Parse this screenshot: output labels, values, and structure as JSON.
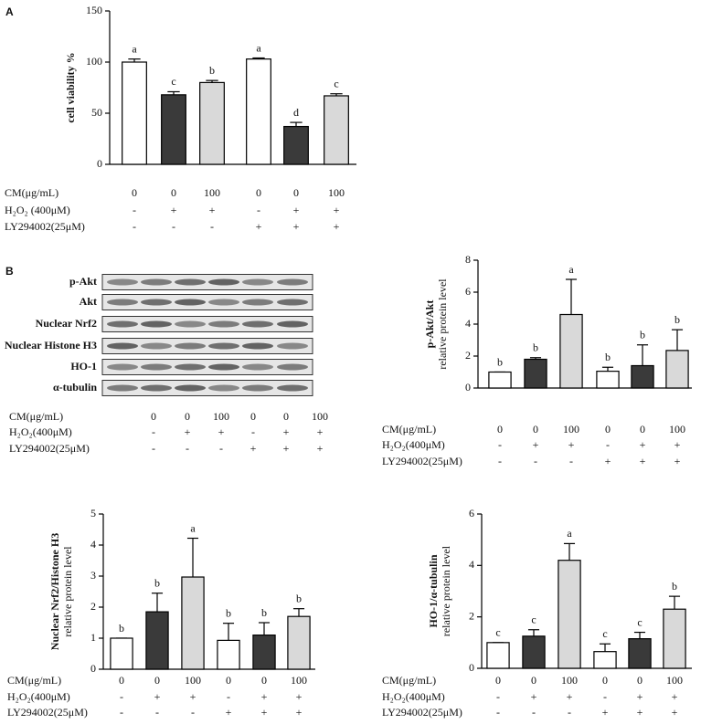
{
  "panel_labels": [
    "A",
    "B"
  ],
  "blot": {
    "bands": [
      "p-Akt",
      "Akt",
      "Nuclear Nrf2",
      "Nuclear Histone H3",
      "HO-1",
      "α-tubulin"
    ],
    "treatments": [
      {
        "label": "CM(μg/mL)",
        "values": [
          "0",
          "0",
          "100",
          "0",
          "0",
          "100"
        ]
      },
      {
        "label": "H₂O₂(400μM)",
        "values": [
          "-",
          "+",
          "+",
          "-",
          "+",
          "+"
        ]
      },
      {
        "label": "LY294002(25μM)",
        "values": [
          "-",
          "-",
          "-",
          "+",
          "+",
          "+"
        ]
      }
    ]
  },
  "chart_data": [
    {
      "type": "bar",
      "ylabel": [
        "cell viability %"
      ],
      "ylim": [
        0,
        150
      ],
      "yticks": [
        0,
        50,
        100,
        150
      ],
      "colors": [
        "#ffffff",
        "#3a3a3a",
        "#d9d9d9",
        "#ffffff",
        "#3a3a3a",
        "#d9d9d9"
      ],
      "values": [
        100,
        68,
        80,
        103,
        37,
        67
      ],
      "errors": [
        3,
        3,
        2,
        1,
        4,
        2
      ],
      "annotations": [
        "a",
        "c",
        "b",
        "a",
        "d",
        "c"
      ],
      "treatments": [
        {
          "label": "CM(μg/mL)",
          "values": [
            "0",
            "0",
            "100",
            "0",
            "0",
            "100"
          ]
        },
        {
          "label": "H₂O₂ (400μM)",
          "values": [
            "-",
            "+",
            "+",
            "-",
            "+",
            "+"
          ]
        },
        {
          "label": "LY294002(25μM)",
          "values": [
            "-",
            "-",
            "-",
            "+",
            "+",
            "+"
          ]
        }
      ]
    },
    {
      "type": "bar",
      "ylabel": [
        "p-Akt/Akt",
        "relative protein level"
      ],
      "ylim": [
        0,
        8
      ],
      "yticks": [
        0,
        2,
        4,
        6,
        8
      ],
      "colors": [
        "#ffffff",
        "#3a3a3a",
        "#d9d9d9",
        "#ffffff",
        "#3a3a3a",
        "#d9d9d9"
      ],
      "values": [
        1,
        1.8,
        4.6,
        1.05,
        1.4,
        2.35
      ],
      "errors": [
        0,
        0.1,
        2.2,
        0.25,
        1.3,
        1.3
      ],
      "annotations": [
        "b",
        "b",
        "a",
        "b",
        "b",
        "b"
      ],
      "treatments": [
        {
          "label": "CM(μg/mL)",
          "values": [
            "0",
            "0",
            "100",
            "0",
            "0",
            "100"
          ]
        },
        {
          "label": "H₂O₂(400μM)",
          "values": [
            "-",
            "+",
            "+",
            "-",
            "+",
            "+"
          ]
        },
        {
          "label": "LY294002(25μM)",
          "values": [
            "-",
            "-",
            "-",
            "+",
            "+",
            "+"
          ]
        }
      ]
    },
    {
      "type": "bar",
      "ylabel": [
        "Nuclear Nrf2/Histone H3",
        "relative protein level"
      ],
      "ylim": [
        0,
        5
      ],
      "yticks": [
        0,
        1,
        2,
        3,
        4,
        5
      ],
      "colors": [
        "#ffffff",
        "#3a3a3a",
        "#d9d9d9",
        "#ffffff",
        "#3a3a3a",
        "#d9d9d9"
      ],
      "values": [
        1,
        1.85,
        2.97,
        0.93,
        1.1,
        1.7
      ],
      "errors": [
        0,
        0.6,
        1.25,
        0.55,
        0.4,
        0.25
      ],
      "annotations": [
        "b",
        "b",
        "a",
        "b",
        "b",
        "b"
      ],
      "treatments": [
        {
          "label": "CM(μg/mL)",
          "values": [
            "0",
            "0",
            "100",
            "0",
            "0",
            "100"
          ]
        },
        {
          "label": "H₂O₂(400μM)",
          "values": [
            "-",
            "+",
            "+",
            "-",
            "+",
            "+"
          ]
        },
        {
          "label": "LY294002(25μM)",
          "values": [
            "-",
            "-",
            "-",
            "+",
            "+",
            "+"
          ]
        }
      ]
    },
    {
      "type": "bar",
      "ylabel": [
        "HO-1/α-tubulin",
        "relative protein level"
      ],
      "ylim": [
        0,
        6
      ],
      "yticks": [
        0,
        2,
        4,
        6
      ],
      "colors": [
        "#ffffff",
        "#3a3a3a",
        "#d9d9d9",
        "#ffffff",
        "#3a3a3a",
        "#d9d9d9"
      ],
      "values": [
        1,
        1.25,
        4.2,
        0.65,
        1.15,
        2.3
      ],
      "errors": [
        0,
        0.25,
        0.65,
        0.3,
        0.25,
        0.5
      ],
      "annotations": [
        "c",
        "c",
        "a",
        "c",
        "c",
        "b"
      ],
      "treatments": [
        {
          "label": "CM(μg/mL)",
          "values": [
            "0",
            "0",
            "100",
            "0",
            "0",
            "100"
          ]
        },
        {
          "label": "H₂O₂(400μM)",
          "values": [
            "-",
            "+",
            "+",
            "-",
            "+",
            "+"
          ]
        },
        {
          "label": "LY294002(25μM)",
          "values": [
            "-",
            "-",
            "-",
            "+",
            "+",
            "+"
          ]
        }
      ]
    }
  ]
}
